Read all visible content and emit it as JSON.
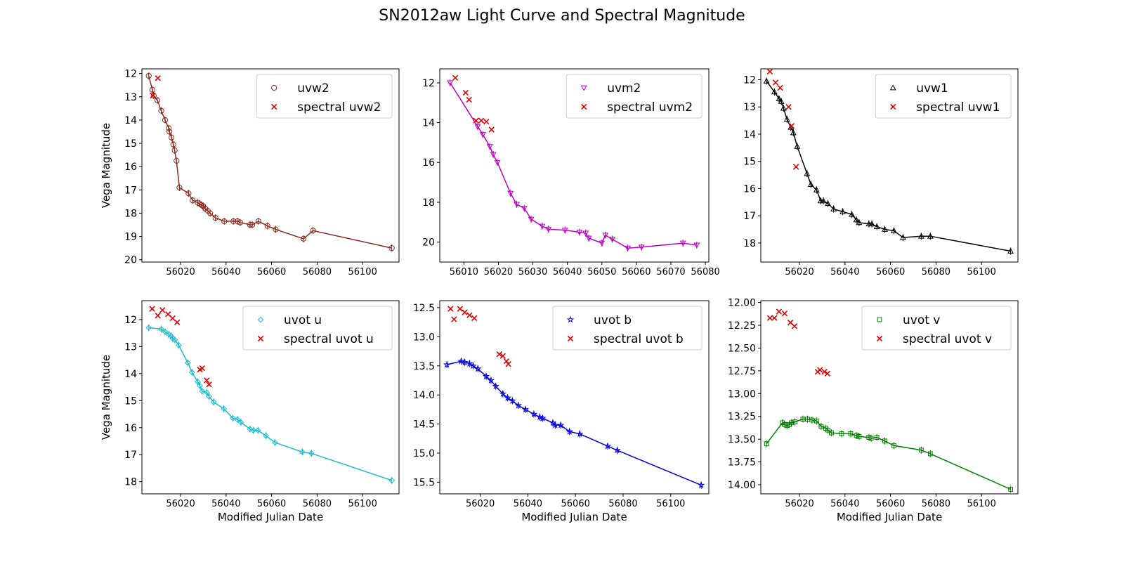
{
  "figure": {
    "title": "SN2012aw Light Curve and Spectral Magnitude"
  },
  "chart_data": [
    {
      "type": "scatter",
      "panel": "uvw2",
      "xlabel": "",
      "ylabel": "Vega Magnitude",
      "xlim": [
        56003,
        56116
      ],
      "ylim": [
        20.1,
        11.8
      ],
      "y_inverted": true,
      "xticks": [
        56020,
        56040,
        56060,
        56080,
        56100
      ],
      "yticks": [
        12,
        13,
        14,
        15,
        16,
        17,
        18,
        19,
        20
      ],
      "legend_position": "top-right",
      "series": [
        {
          "name": "uvw2",
          "marker": "circle",
          "color": "#8b2a1f",
          "line": true,
          "x": [
            56006.0,
            56007.6,
            56008.2,
            56009.8,
            56011.5,
            56013.2,
            56014.8,
            56015.1,
            56016.0,
            56016.8,
            56017.4,
            56018.2,
            56019.5,
            56023.5,
            56025.3,
            56027.5,
            56028.5,
            56029.2,
            56030.0,
            56030.8,
            56032.0,
            56033.0,
            56035.3,
            56039.2,
            56043.2,
            56045.0,
            56046.2,
            56050.5,
            56051.5,
            56054.2,
            56058.2,
            56061.8,
            56074.0,
            56078.2,
            56112.8
          ],
          "y": [
            12.1,
            12.7,
            12.95,
            13.15,
            13.6,
            14.0,
            14.35,
            14.5,
            14.75,
            15.05,
            15.3,
            15.75,
            16.9,
            17.15,
            17.45,
            17.55,
            17.6,
            17.65,
            17.7,
            17.8,
            17.9,
            18.0,
            18.2,
            18.35,
            18.35,
            18.35,
            18.4,
            18.5,
            18.5,
            18.35,
            18.55,
            18.7,
            19.1,
            18.75,
            19.5
          ]
        },
        {
          "name": "spectral uvw2",
          "marker": "x",
          "color": "#e00000",
          "line": false,
          "x": [
            56007.8,
            56010.0
          ],
          "y": [
            12.95,
            12.2
          ]
        }
      ]
    },
    {
      "type": "scatter",
      "panel": "uvm2",
      "xlabel": "",
      "ylabel": "",
      "xlim": [
        56003,
        56081
      ],
      "ylim": [
        21.0,
        11.3
      ],
      "y_inverted": true,
      "xticks": [
        56010,
        56020,
        56030,
        56040,
        56050,
        56060,
        56070,
        56080
      ],
      "yticks": [
        12,
        14,
        16,
        18,
        20
      ],
      "legend_position": "top-right",
      "series": [
        {
          "name": "uvm2",
          "marker": "triangle-down",
          "color": "#c000c0",
          "line": true,
          "x": [
            56006.0,
            56014.0,
            56015.5,
            56017.5,
            56018.5,
            56019.7,
            56023.5,
            56025.3,
            56027.5,
            56029.5,
            56032.7,
            56034.5,
            56039.3,
            56043.5,
            56045.3,
            56046.2,
            56050.0,
            56051.0,
            56053.0,
            56057.5,
            56061.5,
            56073.5,
            56077.5
          ],
          "y": [
            12.0,
            14.2,
            14.6,
            15.2,
            15.6,
            16.0,
            17.55,
            18.1,
            18.3,
            18.85,
            19.2,
            19.35,
            19.4,
            19.5,
            19.55,
            19.8,
            20.05,
            19.65,
            19.85,
            20.3,
            20.25,
            20.05,
            20.15
          ]
        },
        {
          "name": "spectral uvm2",
          "marker": "x",
          "color": "#e00000",
          "line": false,
          "x": [
            56007.5,
            56010.5,
            56011.5,
            56013.5,
            56015.0,
            56016.5,
            56018.0
          ],
          "y": [
            11.75,
            12.5,
            12.85,
            13.9,
            13.9,
            13.95,
            14.35
          ]
        }
      ]
    },
    {
      "type": "scatter",
      "panel": "uvw1",
      "xlabel": "",
      "ylabel": "",
      "xlim": [
        56003,
        56116
      ],
      "ylim": [
        18.7,
        11.6
      ],
      "y_inverted": true,
      "xticks": [
        56020,
        56040,
        56060,
        56080,
        56100
      ],
      "yticks": [
        12,
        13,
        14,
        15,
        16,
        17,
        18
      ],
      "legend_position": "top-right",
      "series": [
        {
          "name": "uvw1",
          "marker": "triangle",
          "color": "#000000",
          "line": true,
          "x": [
            56005.5,
            56009.0,
            56011.0,
            56012.0,
            56013.0,
            56014.5,
            56016.2,
            56017.3,
            56019.0,
            56023.3,
            56025.0,
            56027.5,
            56029.3,
            56030.5,
            56032.5,
            56035.0,
            56039.0,
            56043.0,
            56045.0,
            56046.2,
            56050.5,
            56051.8,
            56054.0,
            56057.5,
            56061.5,
            56065.5,
            56073.5,
            56077.5,
            56112.8
          ],
          "y": [
            12.05,
            12.45,
            12.7,
            12.8,
            13.05,
            13.45,
            13.75,
            13.95,
            14.45,
            15.45,
            15.85,
            16.05,
            16.45,
            16.45,
            16.55,
            16.75,
            16.85,
            16.95,
            17.15,
            17.25,
            17.3,
            17.3,
            17.4,
            17.5,
            17.55,
            17.8,
            17.75,
            17.75,
            18.3
          ]
        },
        {
          "name": "spectral uvw1",
          "marker": "x",
          "color": "#e00000",
          "line": false,
          "x": [
            56007.0,
            56009.5,
            56011.5,
            56015.2,
            56016.5,
            56018.5
          ],
          "y": [
            11.7,
            12.1,
            12.3,
            13.0,
            13.7,
            15.2
          ]
        }
      ]
    },
    {
      "type": "scatter",
      "panel": "uvot u",
      "xlabel": "Modified Julian Date",
      "ylabel": "Vega Magnitude",
      "xlim": [
        56003,
        56116
      ],
      "ylim": [
        18.45,
        11.3
      ],
      "y_inverted": true,
      "xticks": [
        56020,
        56040,
        56060,
        56080,
        56100
      ],
      "yticks": [
        12,
        13,
        14,
        15,
        16,
        17,
        18
      ],
      "legend_position": "top-right",
      "series": [
        {
          "name": "uvot u",
          "marker": "diamond",
          "color": "#17becf",
          "line": true,
          "x": [
            56006.0,
            56011.5,
            56013.2,
            56014.8,
            56015.8,
            56016.5,
            56017.5,
            56019.2,
            56023.2,
            56025.0,
            56027.5,
            56028.5,
            56029.5,
            56031.5,
            56032.5,
            56034.5,
            56039.0,
            56043.0,
            56045.0,
            56046.5,
            56050.5,
            56052.0,
            56054.0,
            56057.5,
            56061.5,
            56073.5,
            56077.5,
            56112.8
          ],
          "y": [
            12.3,
            12.35,
            12.45,
            12.55,
            12.6,
            12.7,
            12.75,
            12.95,
            13.6,
            13.95,
            14.3,
            14.45,
            14.65,
            14.7,
            14.85,
            15.05,
            15.3,
            15.65,
            15.7,
            15.8,
            16.05,
            16.1,
            16.1,
            16.3,
            16.55,
            16.9,
            16.95,
            17.95
          ]
        },
        {
          "name": "spectral uvot u",
          "marker": "x",
          "color": "#e00000",
          "line": false,
          "x": [
            56007.5,
            56010.0,
            56012.0,
            56014.5,
            56016.5,
            56018.5,
            56028.5,
            56029.5,
            56031.5,
            56032.5
          ],
          "y": [
            11.6,
            11.85,
            11.65,
            11.8,
            11.95,
            12.1,
            13.85,
            13.8,
            14.25,
            14.4
          ]
        }
      ]
    },
    {
      "type": "scatter",
      "panel": "uvot b",
      "xlabel": "Modified Julian Date",
      "ylabel": "",
      "xlim": [
        56003,
        56116
      ],
      "ylim": [
        15.7,
        12.38
      ],
      "y_inverted": true,
      "xticks": [
        56020,
        56040,
        56060,
        56080,
        56100
      ],
      "yticks": [
        12.5,
        13.0,
        13.5,
        14.0,
        14.5,
        15.0,
        15.5
      ],
      "legend_position": "top-right",
      "series": [
        {
          "name": "uvot b",
          "marker": "star",
          "color": "#0000e0",
          "line": true,
          "x": [
            56006.0,
            56012.0,
            56013.5,
            56015.5,
            56017.0,
            56019.0,
            56022.5,
            56024.5,
            56026.5,
            56029.5,
            56031.5,
            56033.5,
            56036.0,
            56039.0,
            56042.5,
            56045.0,
            56046.2,
            56050.5,
            56051.5,
            56053.8,
            56057.5,
            56061.8,
            56073.5,
            56077.5,
            56112.8
          ],
          "y": [
            13.48,
            13.42,
            13.44,
            13.46,
            13.5,
            13.55,
            13.68,
            13.75,
            13.85,
            13.98,
            14.05,
            14.1,
            14.18,
            14.25,
            14.33,
            14.38,
            14.4,
            14.48,
            14.52,
            14.52,
            14.63,
            14.67,
            14.88,
            14.95,
            15.55
          ]
        },
        {
          "name": "spectral uvot b",
          "marker": "x",
          "color": "#e00000",
          "line": false,
          "x": [
            56007.5,
            56009.0,
            56011.5,
            56013.5,
            56015.5,
            56017.5,
            56028.0,
            56029.5,
            56031.0,
            56031.8
          ],
          "y": [
            12.52,
            12.7,
            12.52,
            12.58,
            12.63,
            12.68,
            13.3,
            13.33,
            13.42,
            13.47
          ]
        }
      ]
    },
    {
      "type": "scatter",
      "panel": "uvot v",
      "xlabel": "Modified Julian Date",
      "ylabel": "",
      "xlim": [
        56003,
        56116
      ],
      "ylim": [
        14.1,
        11.98
      ],
      "y_inverted": true,
      "xticks": [
        56020,
        56040,
        56060,
        56080,
        56100
      ],
      "yticks": [
        12.0,
        12.25,
        12.5,
        12.75,
        13.0,
        13.25,
        13.5,
        13.75,
        14.0
      ],
      "legend_position": "top-right",
      "series": [
        {
          "name": "uvot v",
          "marker": "square",
          "color": "#008000",
          "line": true,
          "x": [
            56005.5,
            56012.5,
            56013.5,
            56014.5,
            56015.5,
            56016.5,
            56018.0,
            56021.5,
            56023.5,
            56025.5,
            56027.5,
            56029.5,
            56031.5,
            56032.5,
            56034.0,
            56038.5,
            56042.5,
            56045.0,
            56046.2,
            56050.5,
            56051.5,
            56054.0,
            56057.5,
            56061.5,
            56073.5,
            56077.5,
            56112.8
          ],
          "y": [
            13.55,
            13.32,
            13.34,
            13.35,
            13.34,
            13.32,
            13.31,
            13.28,
            13.28,
            13.29,
            13.3,
            13.36,
            13.38,
            13.4,
            13.43,
            13.44,
            13.44,
            13.46,
            13.47,
            13.48,
            13.49,
            13.48,
            13.52,
            13.57,
            13.62,
            13.66,
            14.05
          ]
        },
        {
          "name": "spectral uvot v",
          "marker": "x",
          "color": "#e00000",
          "line": false,
          "x": [
            56007.0,
            56009.0,
            56011.0,
            56013.5,
            56016.0,
            56017.8,
            56028.0,
            56029.0,
            56031.0,
            56032.3
          ],
          "y": [
            12.17,
            12.17,
            12.1,
            12.12,
            12.22,
            12.26,
            12.76,
            12.74,
            12.76,
            12.78
          ]
        }
      ]
    }
  ]
}
